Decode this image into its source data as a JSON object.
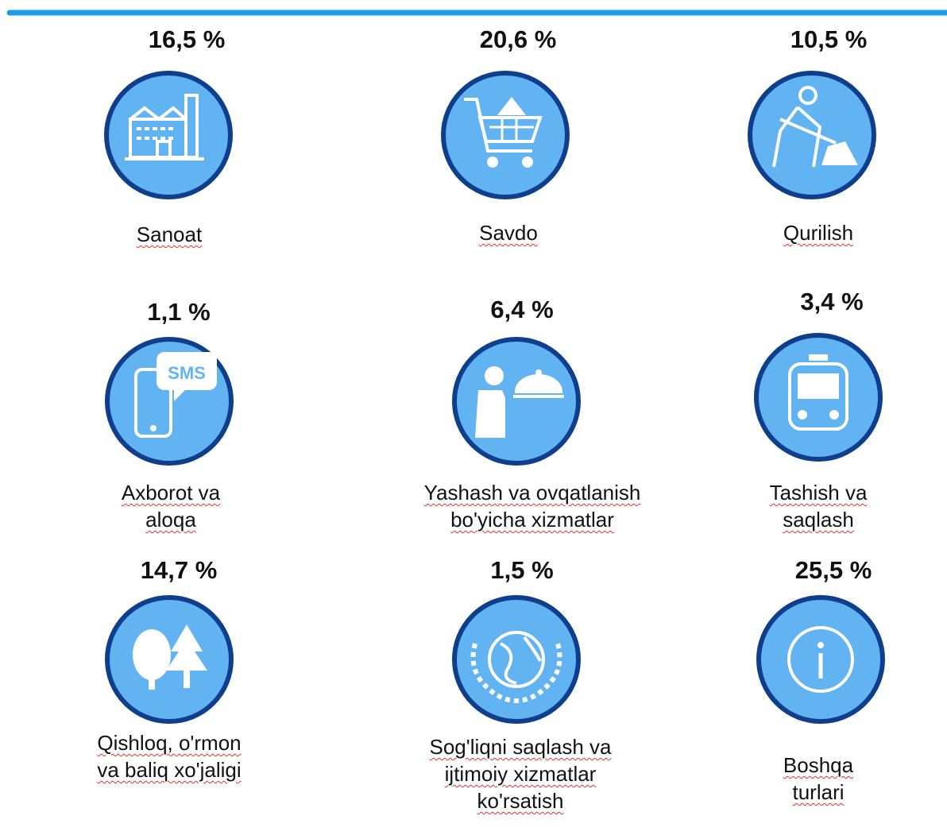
{
  "items": [
    {
      "percent": "16,5 %",
      "label": [
        "Sanoat"
      ]
    },
    {
      "percent": "20,6 %",
      "label": [
        "Savdo"
      ]
    },
    {
      "percent": "10,5 %",
      "label": [
        "Qurilish"
      ]
    },
    {
      "percent": "1,1 %",
      "label": [
        "Axborot va",
        "aloqa"
      ],
      "icon_text": "SMS"
    },
    {
      "percent": "6,4 %",
      "label": [
        "Yashash va ovqatlanish",
        "bo'yicha xizmatlar"
      ]
    },
    {
      "percent": "3,4 %",
      "label": [
        "Tashish va",
        "saqlash"
      ]
    },
    {
      "percent": "14,7 %",
      "label": [
        "Qishloq, o'rmon",
        "va baliq xo'jaligi"
      ]
    },
    {
      "percent": "1,5 %",
      "label": [
        "Sog'liqni saqlash va",
        "ijtimoiy xizmatlar",
        "ko'rsatish"
      ]
    },
    {
      "percent": "25,5 %",
      "label": [
        "Boshqa",
        "turlari"
      ]
    }
  ]
}
